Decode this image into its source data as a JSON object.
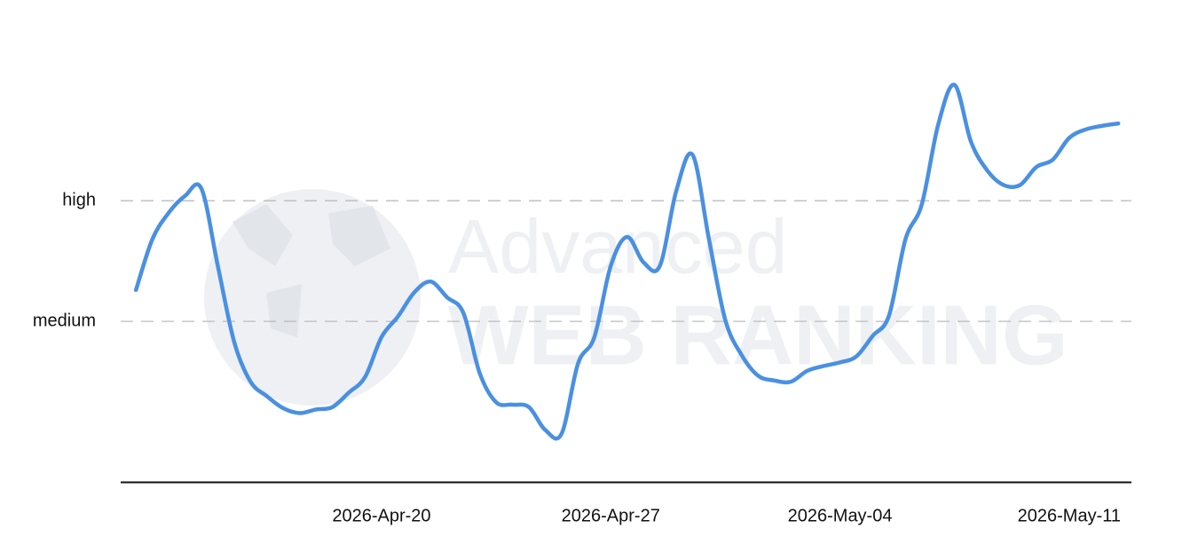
{
  "chart_data": {
    "type": "line",
    "watermark": {
      "line1": "Advanced",
      "line2": "WEB RANKING"
    },
    "categories": [
      null,
      null,
      null,
      null,
      null,
      null,
      null,
      null,
      null,
      null,
      null,
      null,
      null,
      null,
      null,
      "2026-Apr-20",
      null,
      null,
      null,
      null,
      null,
      null,
      null,
      null,
      null,
      null,
      null,
      null,
      null,
      "2026-Apr-27",
      null,
      null,
      null,
      null,
      null,
      null,
      null,
      null,
      null,
      null,
      null,
      null,
      null,
      "2026-May-04",
      null,
      null,
      null,
      null,
      null,
      null,
      null,
      null,
      null,
      null,
      null,
      null,
      null,
      "2026-May-11",
      null,
      null,
      null
    ],
    "values": [
      2.26,
      2.68,
      2.9,
      3.04,
      3.1,
      2.46,
      1.83,
      1.5,
      1.38,
      1.28,
      1.24,
      1.27,
      1.29,
      1.41,
      1.54,
      1.87,
      2.04,
      2.24,
      2.33,
      2.2,
      2.07,
      1.57,
      1.33,
      1.31,
      1.29,
      1.1,
      1.07,
      1.65,
      1.87,
      2.46,
      2.7,
      2.49,
      2.46,
      3.08,
      3.38,
      2.68,
      2.01,
      1.72,
      1.55,
      1.51,
      1.5,
      1.59,
      1.63,
      1.66,
      1.71,
      1.88,
      2.05,
      2.68,
      2.97,
      3.63,
      3.96,
      3.49,
      3.25,
      3.13,
      3.13,
      3.28,
      3.34,
      3.52,
      3.59,
      3.62,
      3.64
    ],
    "color": "#4a90e2",
    "ylim": [
      0.67,
      4.2
    ],
    "yticks": [
      {
        "value": 2,
        "label": "medium"
      },
      {
        "value": 3,
        "label": "high"
      }
    ],
    "grid": true
  }
}
